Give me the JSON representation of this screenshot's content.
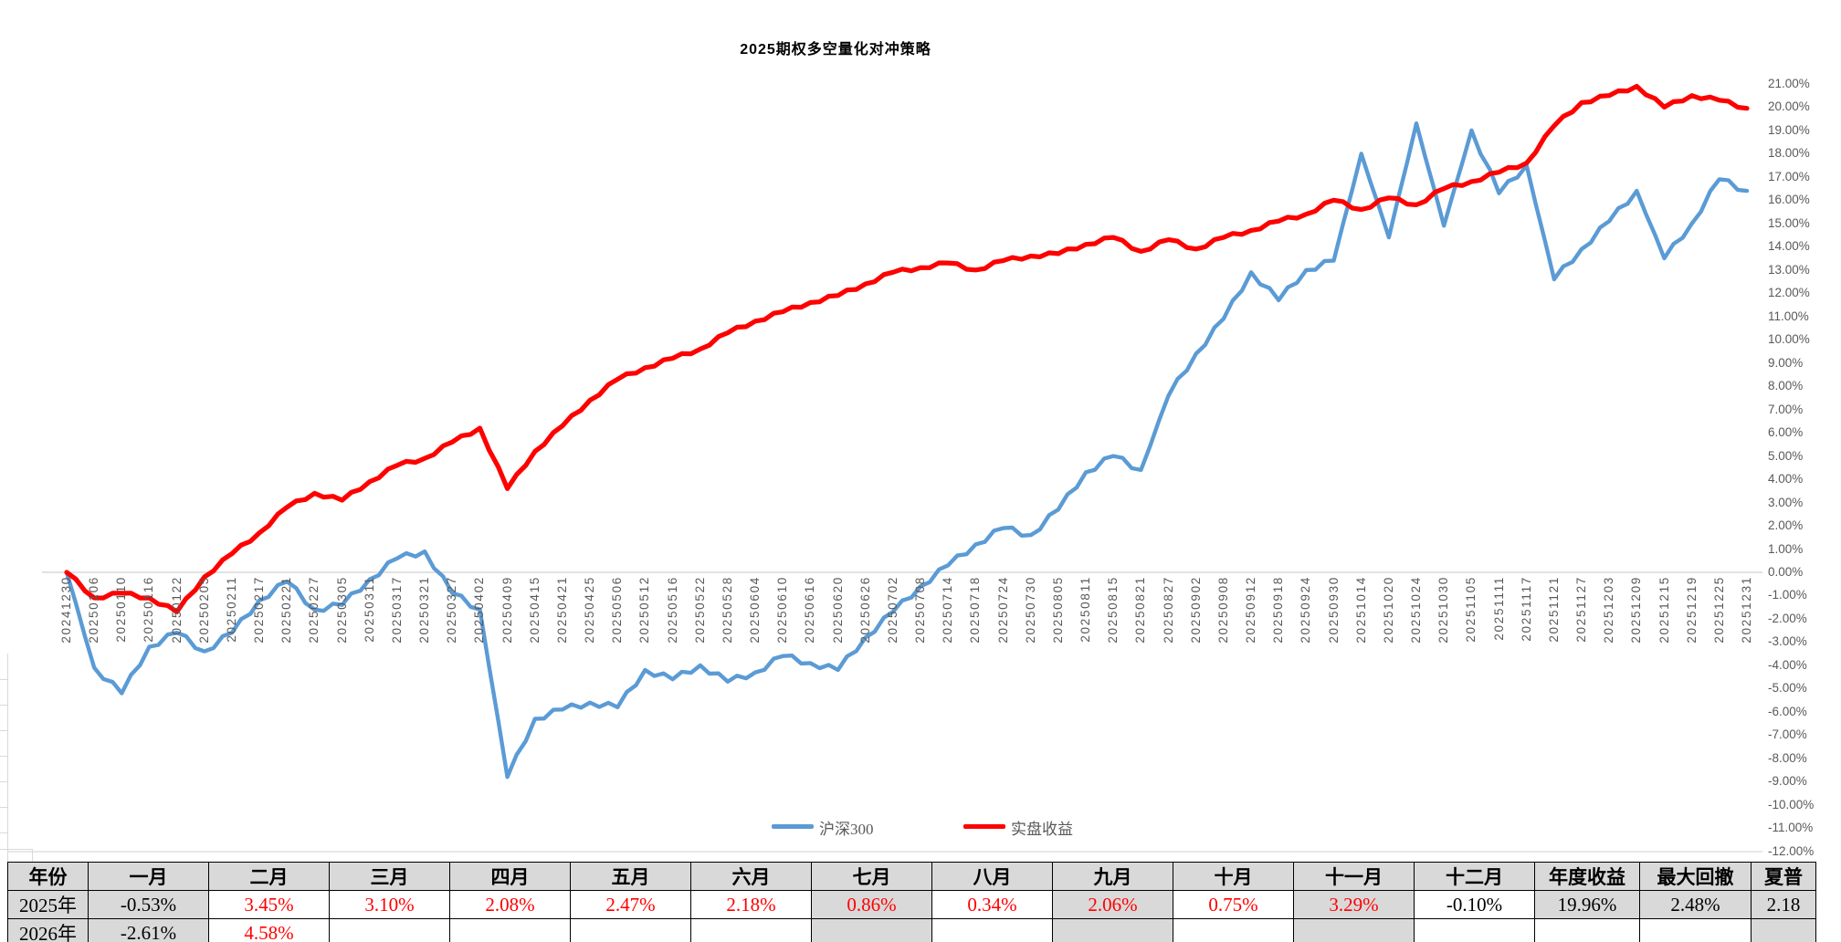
{
  "title": "2025期权多空量化对冲策略",
  "chart_data": {
    "type": "line",
    "title": "2025期权多空量化对冲策略",
    "x_labels": [
      "20241230",
      "20250106",
      "20250110",
      "20250116",
      "20250122",
      "20250205",
      "20250211",
      "20250217",
      "20250221",
      "20250227",
      "20250305",
      "20250311",
      "20250317",
      "20250321",
      "20250327",
      "20250402",
      "20250409",
      "20250415",
      "20250421",
      "20250425",
      "20250506",
      "20250512",
      "20250516",
      "20250522",
      "20250528",
      "20250604",
      "20250610",
      "20250616",
      "20250620",
      "20250626",
      "20250702",
      "20250708",
      "20250714",
      "20250718",
      "20250724",
      "20250730",
      "20250805",
      "20250811",
      "20250815",
      "20250821",
      "20250827",
      "20250902",
      "20250908",
      "20250912",
      "20250918",
      "20250924",
      "20250930",
      "20251014",
      "20251020",
      "20251024",
      "20251030",
      "20251105",
      "20251111",
      "20251117",
      "20251121",
      "20251127",
      "20251203",
      "20251209",
      "20251215",
      "20251219",
      "20251225",
      "20251231"
    ],
    "series": [
      {
        "name": "沪深300",
        "color": "#5B9BD5",
        "values": [
          0,
          -4.1,
          -5.2,
          -3.2,
          -2.6,
          -3.4,
          -2.6,
          -1.2,
          -0.4,
          -1.6,
          -1.4,
          -0.3,
          0.6,
          0.9,
          -0.9,
          -1.6,
          -8.8,
          -6.3,
          -5.9,
          -5.6,
          -5.8,
          -4.2,
          -4.6,
          -4.0,
          -4.7,
          -4.3,
          -3.6,
          -3.9,
          -4.2,
          -2.8,
          -1.7,
          -0.6,
          0.3,
          1.2,
          1.9,
          1.6,
          2.7,
          4.3,
          5.0,
          4.4,
          7.6,
          9.4,
          10.9,
          12.9,
          11.7,
          13.0,
          13.4,
          18.0,
          14.4,
          19.3,
          14.9,
          19.0,
          16.3,
          17.5,
          12.6,
          13.9,
          15.1,
          16.4,
          13.5,
          15.0,
          16.9,
          16.4
        ]
      },
      {
        "name": "实盘收益",
        "color": "#FF0000",
        "values": [
          0,
          -1.1,
          -0.9,
          -1.1,
          -1.7,
          -0.2,
          0.8,
          1.7,
          2.8,
          3.4,
          3.1,
          3.9,
          4.6,
          4.9,
          5.6,
          6.2,
          3.6,
          5.2,
          6.3,
          7.4,
          8.3,
          8.8,
          9.2,
          9.6,
          10.3,
          10.8,
          11.2,
          11.6,
          11.9,
          12.4,
          12.9,
          13.1,
          13.3,
          13.0,
          13.4,
          13.6,
          13.7,
          14.1,
          14.4,
          13.8,
          14.3,
          13.9,
          14.4,
          14.7,
          15.1,
          15.4,
          16.0,
          15.6,
          16.1,
          15.8,
          16.5,
          16.8,
          17.2,
          17.6,
          19.2,
          20.2,
          20.5,
          20.9,
          20.0,
          20.5,
          20.3,
          19.95
        ]
      }
    ],
    "y_ticks": [
      "21.00%",
      "20.00%",
      "19.00%",
      "18.00%",
      "17.00%",
      "16.00%",
      "15.00%",
      "14.00%",
      "13.00%",
      "12.00%",
      "11.00%",
      "10.00%",
      "9.00%",
      "8.00%",
      "7.00%",
      "6.00%",
      "5.00%",
      "4.00%",
      "3.00%",
      "2.00%",
      "1.00%",
      "0.00%",
      "-1.00%",
      "-2.00%",
      "-3.00%",
      "-4.00%",
      "-5.00%",
      "-6.00%",
      "-7.00%",
      "-8.00%",
      "-9.00%",
      "-10.00%",
      "-11.00%",
      "-12.00%"
    ],
    "ylim": [
      -12,
      21
    ],
    "y_axis_side": "right",
    "gridlines": "zero-line-only",
    "legend_position": "inside-bottom-center"
  },
  "table": {
    "headers": [
      "年份",
      "一月",
      "二月",
      "三月",
      "四月",
      "五月",
      "六月",
      "七月",
      "八月",
      "九月",
      "十月",
      "十一月",
      "十二月",
      "年度收益",
      "最大回撤",
      "夏普"
    ],
    "rows": [
      {
        "cells": [
          "2025年",
          "-0.53%",
          "3.45%",
          "3.10%",
          "2.08%",
          "2.47%",
          "2.18%",
          "0.86%",
          "0.34%",
          "2.06%",
          "0.75%",
          "3.29%",
          "-0.10%",
          "19.96%",
          "2.48%",
          "2.18"
        ],
        "shaded_cols": [
          0,
          1,
          7,
          9,
          11,
          13,
          14,
          15
        ]
      },
      {
        "cells": [
          "2026年",
          "-2.61%",
          "4.58%",
          "",
          "",
          "",
          "",
          "",
          "",
          "",
          "",
          "",
          "",
          "",
          "",
          ""
        ],
        "shaded_cols": [
          0,
          1,
          7,
          9,
          11,
          15
        ]
      }
    ],
    "colors": {
      "positive_value": "#FF0000",
      "negative_value": "#000000",
      "header_bg": "#D9D9D9",
      "shade_bg": "#D9D9D9",
      "border": "#000000"
    }
  }
}
